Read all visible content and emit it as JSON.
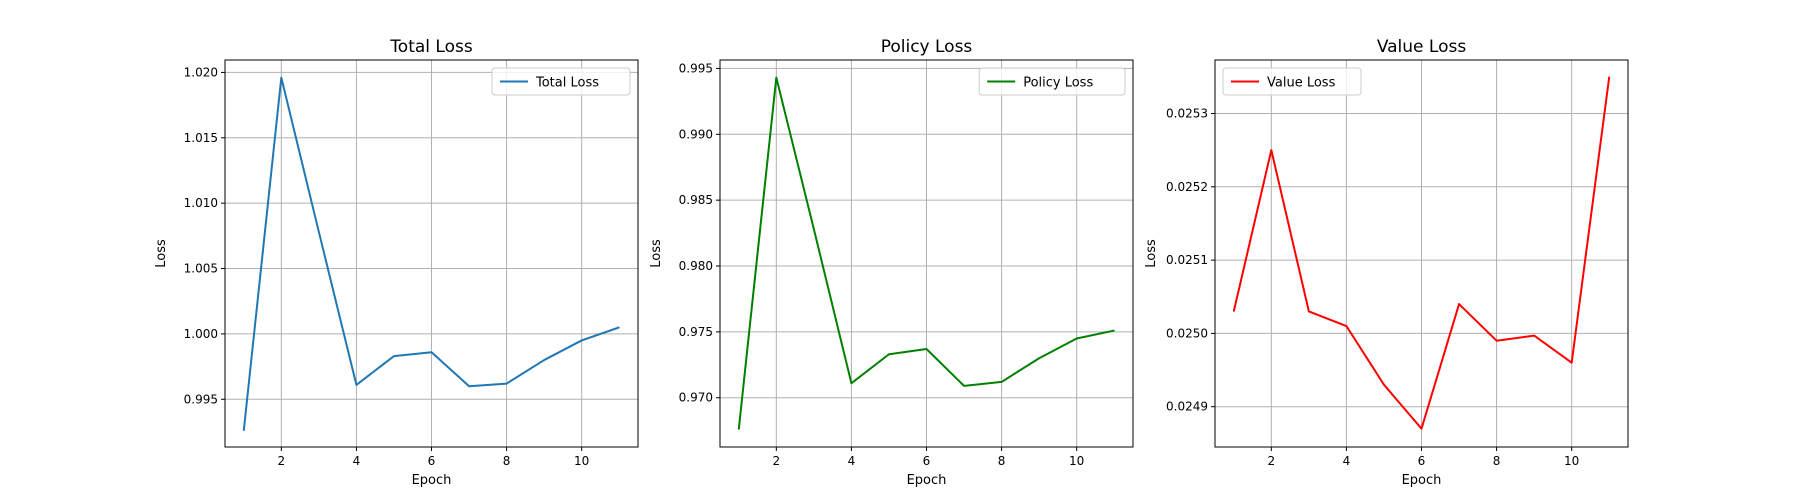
{
  "chart_data": [
    {
      "type": "line",
      "title": "Total Loss",
      "xlabel": "Epoch",
      "ylabel": "Loss",
      "x": [
        1,
        2,
        3,
        4,
        5,
        6,
        7,
        8,
        9,
        10,
        11
      ],
      "series": [
        {
          "name": "Total Loss",
          "color": "#1f77b4",
          "values": [
            0.9926,
            1.0196,
            1.0078,
            0.9961,
            0.9983,
            0.9986,
            0.996,
            0.9962,
            0.998,
            0.9995,
            1.0005
          ]
        }
      ],
      "xlim": [
        0.5,
        11.5
      ],
      "ylim": [
        0.99135,
        1.02095
      ],
      "xticks": [
        2,
        4,
        6,
        8,
        10
      ],
      "xtick_labels": [
        "2",
        "4",
        "6",
        "8",
        "10"
      ],
      "yticks": [
        0.995,
        1.0,
        1.005,
        1.01,
        1.015,
        1.02
      ],
      "ytick_labels": [
        "0.995",
        "1.000",
        "1.005",
        "1.010",
        "1.015",
        "1.020"
      ],
      "grid": true,
      "legend": "upper right"
    },
    {
      "type": "line",
      "title": "Policy Loss",
      "xlabel": "Epoch",
      "ylabel": "Loss",
      "x": [
        1,
        2,
        3,
        4,
        5,
        6,
        7,
        8,
        9,
        10,
        11
      ],
      "series": [
        {
          "name": "Policy Loss",
          "color": "#008000",
          "values": [
            0.9676,
            0.9943,
            0.9828,
            0.9711,
            0.9733,
            0.9737,
            0.9709,
            0.9712,
            0.973,
            0.9745,
            0.9751
          ]
        }
      ],
      "xlim": [
        0.5,
        11.5
      ],
      "ylim": [
        0.96626,
        0.99564
      ],
      "xticks": [
        2,
        4,
        6,
        8,
        10
      ],
      "xtick_labels": [
        "2",
        "4",
        "6",
        "8",
        "10"
      ],
      "yticks": [
        0.97,
        0.975,
        0.98,
        0.985,
        0.99,
        0.995
      ],
      "ytick_labels": [
        "0.970",
        "0.975",
        "0.980",
        "0.985",
        "0.990",
        "0.995"
      ],
      "grid": true,
      "legend": "upper right"
    },
    {
      "type": "line",
      "title": "Value Loss",
      "xlabel": "Epoch",
      "ylabel": "Loss",
      "x": [
        1,
        2,
        3,
        4,
        5,
        6,
        7,
        8,
        9,
        10,
        11
      ],
      "series": [
        {
          "name": "Value Loss",
          "color": "#ff0000",
          "values": [
            0.02503,
            0.02525,
            0.02503,
            0.02501,
            0.02493,
            0.02487,
            0.02504,
            0.02499,
            0.024997,
            0.02496,
            0.02535
          ]
        }
      ],
      "xlim": [
        0.5,
        11.5
      ],
      "ylim": [
        0.024845,
        0.025373
      ],
      "xticks": [
        2,
        4,
        6,
        8,
        10
      ],
      "xtick_labels": [
        "2",
        "4",
        "6",
        "8",
        "10"
      ],
      "yticks": [
        0.0249,
        0.025,
        0.0251,
        0.0252,
        0.0253
      ],
      "ytick_labels": [
        "0.0249",
        "0.0250",
        "0.0251",
        "0.0252",
        "0.0253"
      ],
      "grid": true,
      "legend": "upper left"
    }
  ]
}
